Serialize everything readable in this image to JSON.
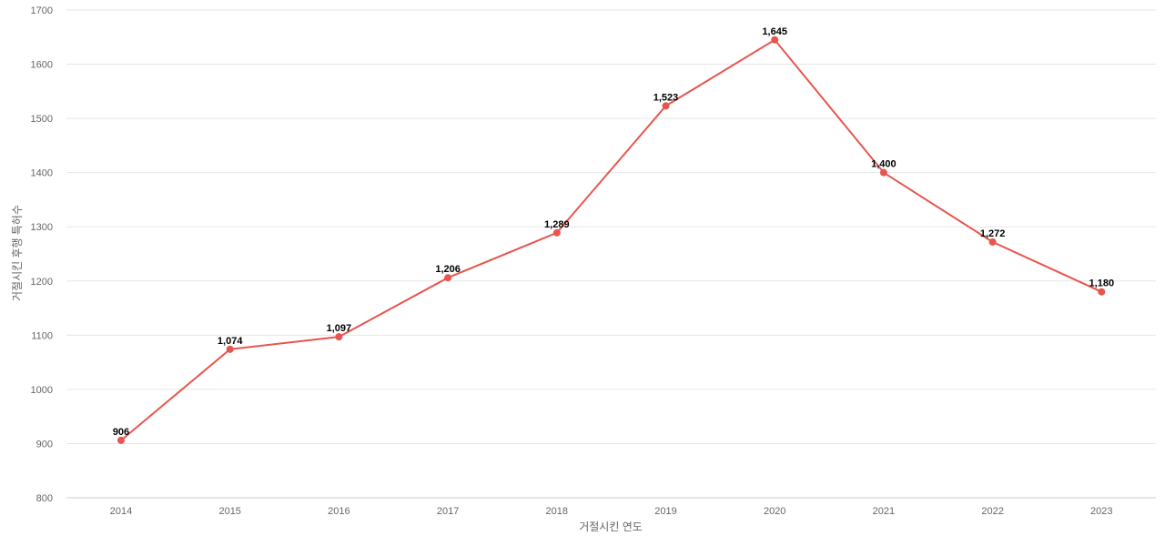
{
  "chart_data": {
    "type": "line",
    "title": "",
    "xlabel": "거절시킨 연도",
    "ylabel": "거절시킨 후행 특허수",
    "categories": [
      "2014",
      "2015",
      "2016",
      "2017",
      "2018",
      "2019",
      "2020",
      "2021",
      "2022",
      "2023"
    ],
    "series": [
      {
        "values": [
          906,
          1074,
          1097,
          1206,
          1289,
          1523,
          1645,
          1400,
          1272,
          1180
        ],
        "labels": [
          "906",
          "1,074",
          "1,097",
          "1,206",
          "1,289",
          "1,523",
          "1,645",
          "1,400",
          "1,272",
          "1,180"
        ],
        "color": "#e8554e"
      }
    ],
    "ylim": [
      800,
      1700
    ],
    "yticks": [
      800,
      900,
      1000,
      1100,
      1200,
      1300,
      1400,
      1500,
      1600,
      1700
    ],
    "grid": true,
    "legend": "none"
  }
}
